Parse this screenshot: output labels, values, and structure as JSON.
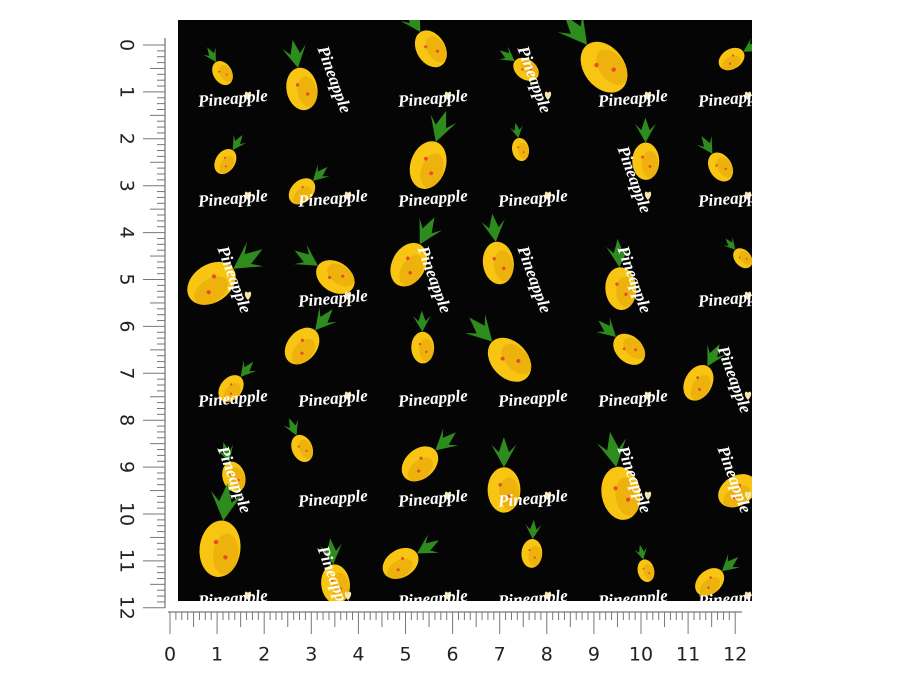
{
  "pattern": {
    "word": "Pineapple"
  },
  "ruler": {
    "x_labels": [
      0,
      1,
      2,
      3,
      4,
      5,
      6,
      7,
      8,
      9,
      10,
      11,
      12
    ],
    "y_labels": [
      0,
      1,
      2,
      3,
      4,
      5,
      6,
      7,
      8,
      9,
      10,
      11,
      12
    ]
  }
}
